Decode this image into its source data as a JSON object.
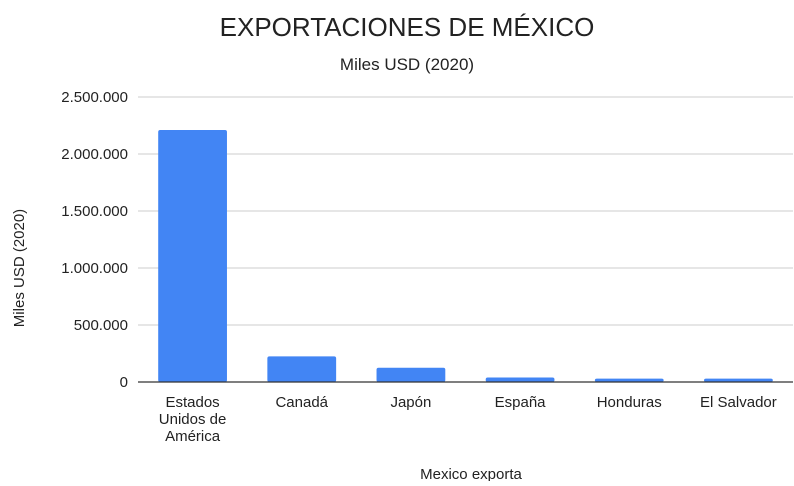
{
  "chart_data": {
    "type": "bar",
    "title": "EXPORTACIONES DE MÉXICO",
    "subtitle": "Miles USD (2020)",
    "xlabel": "Mexico exporta",
    "ylabel": "Miles USD (2020)",
    "categories": [
      [
        "Estados",
        "Unidos de",
        "América"
      ],
      [
        "Canadá"
      ],
      [
        "Japón"
      ],
      [
        "España"
      ],
      [
        "Honduras"
      ],
      [
        "El Salvador"
      ]
    ],
    "values": [
      2210000,
      225000,
      125000,
      40000,
      30000,
      30000
    ],
    "ylim": [
      0,
      2500000
    ],
    "yticks": [
      0,
      500000,
      1000000,
      1500000,
      2000000,
      2500000
    ],
    "ytick_labels": [
      "0",
      "500.000",
      "1.000.000",
      "1.500.000",
      "2.000.000",
      "2.500.000"
    ],
    "grid": true,
    "colors": {
      "bar": "#4285f4",
      "grid": "#cccccc",
      "axis": "#333333",
      "text": "#222222"
    }
  }
}
